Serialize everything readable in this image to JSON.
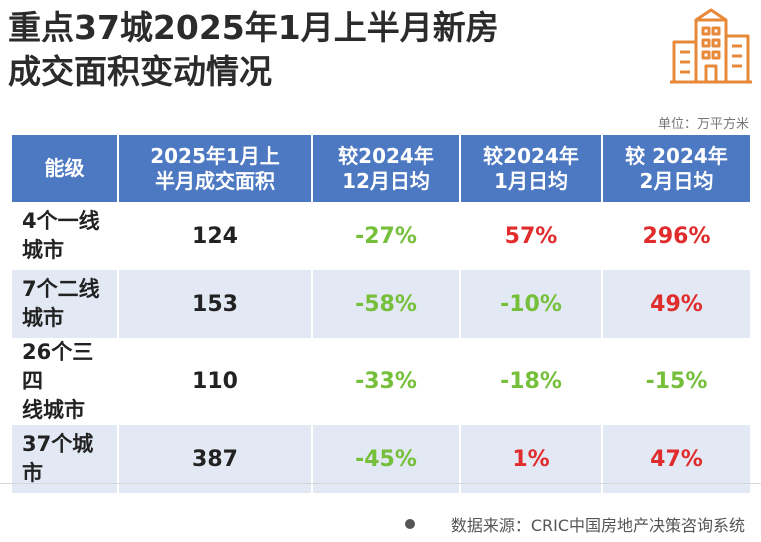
{
  "title": {
    "line1": "重点37城2025年1月上半月新房",
    "line2": "成交面积变动情况"
  },
  "unit_note": "单位：万平方米",
  "source": "数据来源：CRIC中国房地产决策咨询系统",
  "colors": {
    "header_bg": "#4d78c2",
    "row_alt_bg": "#e3e9f4",
    "negative": "#76bf3a",
    "positive": "#e02c2c",
    "building_icon": "#e8893a"
  },
  "chart_data": {
    "type": "table",
    "columns": [
      {
        "line1": "能级",
        "line2": ""
      },
      {
        "line1": "2025年1月上",
        "line2": "半月成交面积"
      },
      {
        "line1": "较2024年",
        "line2": "12月日均"
      },
      {
        "line1": "较2024年",
        "line2": "1月日均"
      },
      {
        "line1": "较 2024年",
        "line2": "2月日均"
      }
    ],
    "rows": [
      {
        "level_line1": "4个一线",
        "level_line2": "城市",
        "area": "124",
        "vs_dec": "-27%",
        "vs_jan": "57%",
        "vs_feb": "296%"
      },
      {
        "level_line1": "7个二线",
        "level_line2": "城市",
        "area": "153",
        "vs_dec": "-58%",
        "vs_jan": "-10%",
        "vs_feb": "49%"
      },
      {
        "level_line1": "26个三四",
        "level_line2": "线城市",
        "area": "110",
        "vs_dec": "-33%",
        "vs_jan": "-18%",
        "vs_feb": "-15%"
      },
      {
        "level_line1": "37个城市",
        "level_line2": "",
        "area": "387",
        "vs_dec": "-45%",
        "vs_jan": "1%",
        "vs_feb": "47%"
      }
    ]
  }
}
